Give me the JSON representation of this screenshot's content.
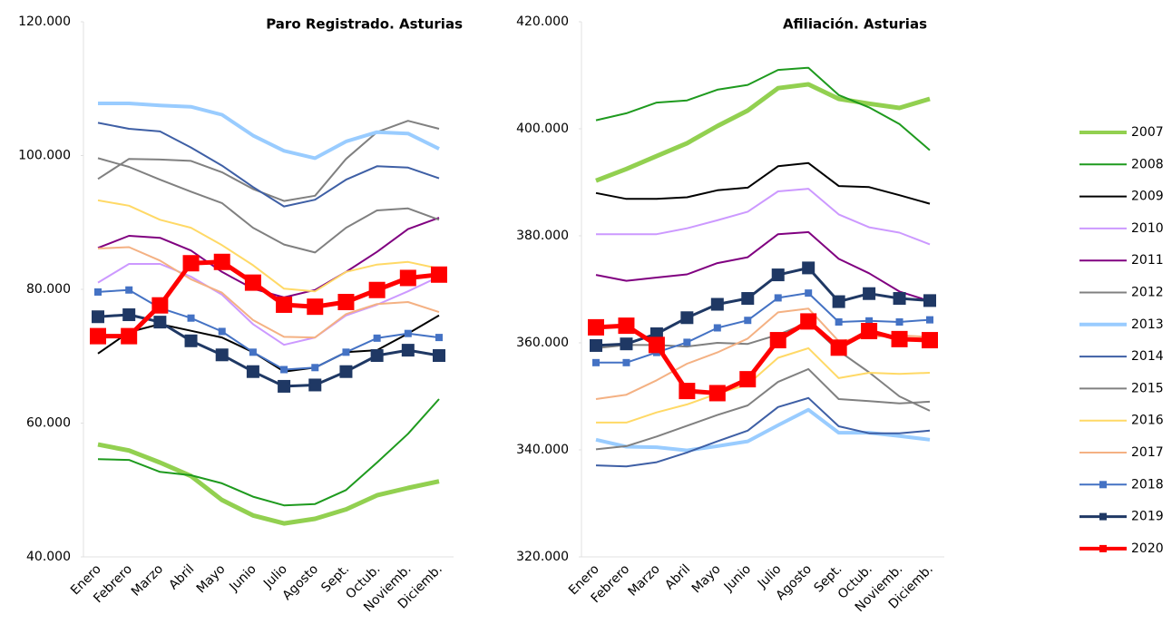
{
  "chart_data": [
    {
      "type": "line",
      "title": "Paro Registrado. Asturias",
      "categories": [
        "Enero",
        "Febrero",
        "Marzo",
        "Abril",
        "Mayo",
        "Junio",
        "Julio",
        "Agosto",
        "Sept.",
        "Octub.",
        "Noviemb.",
        "Diciemb."
      ],
      "ylim": [
        40000,
        120000
      ],
      "yticks": [
        {
          "value": 40000,
          "label": "40.000"
        },
        {
          "value": 60000,
          "label": "60.000"
        },
        {
          "value": 80000,
          "label": "80.000"
        },
        {
          "value": 100000,
          "label": "100.000"
        },
        {
          "value": 120000,
          "label": "120.000"
        }
      ],
      "series": [
        {
          "name": "2007",
          "color": "#92d050",
          "values": [
            56800,
            55900,
            54100,
            52100,
            48500,
            46200,
            45000,
            45700,
            47100,
            49200,
            50300,
            51300
          ]
        },
        {
          "name": "2008",
          "color": "#1e9a1e",
          "values": [
            54600,
            54500,
            52700,
            52200,
            51000,
            49000,
            47700,
            47900,
            50000,
            54100,
            58400,
            63600
          ]
        },
        {
          "name": "2009",
          "color": "#000000",
          "values": [
            70400,
            73600,
            74800,
            73800,
            72800,
            70600,
            67700,
            68300,
            70600,
            70900,
            73400,
            76100
          ]
        },
        {
          "name": "2010",
          "color": "#cc99ff",
          "values": [
            81000,
            83800,
            83800,
            81900,
            79200,
            74800,
            71700,
            72800,
            76100,
            77700,
            79700,
            81900
          ]
        },
        {
          "name": "2011",
          "color": "#800080",
          "values": [
            86200,
            88000,
            87700,
            85800,
            82600,
            80100,
            78800,
            79900,
            82600,
            85600,
            89000,
            90700
          ]
        },
        {
          "name": "2012",
          "color": "#808080",
          "values": [
            96500,
            99500,
            99400,
            99200,
            97500,
            95000,
            93200,
            94000,
            99500,
            103500,
            105200,
            104000
          ]
        },
        {
          "name": "2013",
          "color": "#99ccff",
          "values": [
            107800,
            107800,
            107500,
            107300,
            106100,
            103000,
            100700,
            99600,
            102100,
            103500,
            103300,
            101000
          ]
        },
        {
          "name": "2014",
          "color": "#3e5fa5",
          "values": [
            104900,
            104000,
            103600,
            101200,
            98500,
            95300,
            92400,
            93400,
            96400,
            98400,
            98200,
            96600
          ]
        },
        {
          "name": "2015",
          "color": "#808080",
          "values": [
            99600,
            98300,
            96400,
            94600,
            92900,
            89200,
            86700,
            85500,
            89200,
            91800,
            92100,
            90400
          ]
        },
        {
          "name": "2016",
          "color": "#ffd966",
          "values": [
            93300,
            92500,
            90400,
            89200,
            86600,
            83600,
            80100,
            79700,
            82600,
            83700,
            84100,
            83100
          ]
        },
        {
          "name": "2017",
          "color": "#f4b183",
          "values": [
            86100,
            86300,
            84300,
            81500,
            79500,
            75400,
            72900,
            72800,
            76300,
            77800,
            78100,
            76600
          ]
        },
        {
          "name": "2018",
          "color": "#4472c4",
          "values": [
            79600,
            79900,
            77200,
            75700,
            73700,
            70600,
            68000,
            68300,
            70600,
            72700,
            73400,
            72800
          ]
        },
        {
          "name": "2019",
          "color": "#1f3864",
          "values": [
            75900,
            76200,
            75100,
            72300,
            70200,
            67700,
            65500,
            65700,
            67700,
            70100,
            70900,
            70100
          ]
        },
        {
          "name": "2020",
          "color": "#ff0000",
          "values": [
            73000,
            73000,
            77600,
            83900,
            84100,
            81000,
            77700,
            77400,
            78100,
            79900,
            81700,
            82200
          ]
        }
      ]
    },
    {
      "type": "line",
      "title": "Afiliación.  Asturias",
      "categories": [
        "Enero",
        "Febrero",
        "Marzo",
        "Abril",
        "Mayo",
        "Junio",
        "Julio",
        "Agosto",
        "Sept.",
        "Octub.",
        "Noviemb.",
        "Diciemb."
      ],
      "ylim": [
        320000,
        420000
      ],
      "yticks": [
        {
          "value": 320000,
          "label": "320.000"
        },
        {
          "value": 340000,
          "label": "340.000"
        },
        {
          "value": 360000,
          "label": "360.000"
        },
        {
          "value": 380000,
          "label": "380.000"
        },
        {
          "value": 400000,
          "label": "400.000"
        },
        {
          "value": 420000,
          "label": "420.000"
        }
      ],
      "series": [
        {
          "values": [
            390300,
            392500,
            394900,
            397300,
            400500,
            403400,
            407600,
            408300,
            405600,
            404700,
            403900,
            405600
          ]
        },
        {
          "values": [
            401600,
            402900,
            404900,
            405300,
            407300,
            408200,
            411000,
            411400,
            406300,
            404000,
            400900,
            396000
          ]
        },
        {
          "values": [
            388000,
            386900,
            386900,
            387200,
            388500,
            389000,
            393000,
            393600,
            389300,
            389100,
            387600,
            386000
          ]
        },
        {
          "values": [
            380300,
            380300,
            380300,
            381400,
            382900,
            384500,
            388300,
            388800,
            384000,
            381600,
            380600,
            378400
          ]
        },
        {
          "values": [
            372700,
            371600,
            372200,
            372800,
            374900,
            376000,
            380300,
            380700,
            375700,
            373000,
            369600,
            367800
          ]
        },
        {
          "values": [
            359000,
            359600,
            359600,
            359300,
            360000,
            359800,
            361500,
            363800,
            358500,
            354500,
            350000,
            347300
          ]
        },
        {
          "values": [
            341900,
            340600,
            340500,
            339900,
            340700,
            341600,
            344600,
            347500,
            343200,
            343200,
            342600,
            341900
          ]
        },
        {
          "values": [
            337100,
            336900,
            337700,
            339500,
            341600,
            343600,
            348000,
            349700,
            344400,
            343100,
            343100,
            343600
          ]
        },
        {
          "values": [
            340100,
            340700,
            342500,
            344500,
            346500,
            348300,
            352700,
            355100,
            349500,
            349100,
            348700,
            349000
          ]
        },
        {
          "values": [
            345100,
            345100,
            347000,
            348500,
            350500,
            352200,
            357200,
            359000,
            353400,
            354400,
            354200,
            354400
          ]
        },
        {
          "values": [
            349500,
            350300,
            353000,
            356100,
            358200,
            360800,
            365700,
            366400,
            360300,
            361100,
            361400,
            361100
          ]
        },
        {
          "values": [
            356300,
            356300,
            358200,
            360100,
            362800,
            364200,
            368400,
            369300,
            363900,
            364100,
            363900,
            364300
          ]
        },
        {
          "values": [
            359500,
            359800,
            361700,
            364700,
            367200,
            368300,
            372700,
            374000,
            367700,
            369200,
            368300,
            367900
          ]
        },
        {
          "values": [
            362900,
            363200,
            359600,
            351000,
            350600,
            353200,
            360500,
            364000,
            359100,
            362200,
            360700,
            360500
          ]
        }
      ]
    }
  ]
}
